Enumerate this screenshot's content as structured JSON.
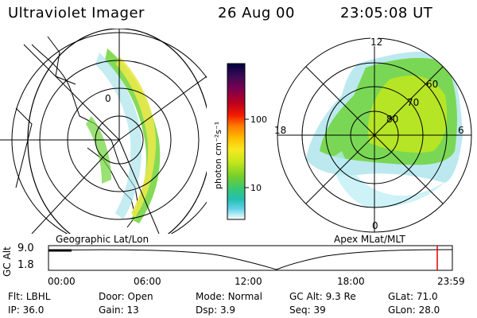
{
  "header": {
    "title": "Ultraviolet Imager",
    "date": "26 Aug 00",
    "time": "23:05:08 UT"
  },
  "colors": {
    "frame": "#000000",
    "aurora_green": "#6ed43a",
    "aurora_yellow": "#e8e84a",
    "aurora_cyan": "#9fe0e8",
    "marker_red": "#e00000"
  },
  "left_panel": {
    "label": "Geographic Lat/Lon",
    "grid_label": "0"
  },
  "right_panel": {
    "label": "Apex MLat/MLT",
    "mlt_labels": [
      "12",
      "18",
      "6",
      "0"
    ],
    "mlat_labels": [
      "60",
      "70",
      "80"
    ]
  },
  "colorbar": {
    "unit": "photon cm⁻²s⁻¹",
    "ticks": [
      "100",
      "10"
    ],
    "scale": "log",
    "colors": [
      "#000040",
      "#3a0a55",
      "#7a0050",
      "#b80020",
      "#f21a00",
      "#ff7a00",
      "#ffbf00",
      "#f7e820",
      "#c5e81a",
      "#78d02a",
      "#3ac870",
      "#22c0b0",
      "#60d0e8",
      "#b8ecf4",
      "#ffffff"
    ]
  },
  "timeline": {
    "axis_label": "GC Alt",
    "y_ticks": [
      "9.0",
      "1.8"
    ],
    "x_ticks": [
      "00:00",
      "06:00",
      "12:00",
      "18:00",
      "23:59"
    ],
    "marker_time": "23:05"
  },
  "status": {
    "row1": [
      {
        "label": "Flt:",
        "value": "LBHL"
      },
      {
        "label": "Door:",
        "value": "Open"
      },
      {
        "label": "Mode:",
        "value": "Normal"
      },
      {
        "label": "GC Alt:",
        "value": "9.3 Re"
      },
      {
        "label": "GLat:",
        "value": "71.0"
      }
    ],
    "row2": [
      {
        "label": "IP:",
        "value": "36.0"
      },
      {
        "label": "Gain:",
        "value": "13"
      },
      {
        "label": "Dsp:",
        "value": "3.9"
      },
      {
        "label": "Seq:",
        "value": "39"
      },
      {
        "label": "GLon:",
        "value": "28.0"
      }
    ]
  }
}
